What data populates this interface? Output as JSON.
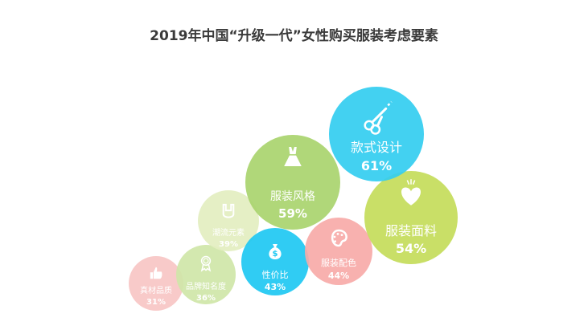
{
  "chart_data": {
    "type": "bubble",
    "title": "2019年中国“升级一代”女性购买服装考虑要素",
    "series": [
      {
        "label": "款式设计",
        "value": 61,
        "value_text": "61%",
        "color": "#33cdf0",
        "icon": "scissors-icon"
      },
      {
        "label": "服装风格",
        "value": 59,
        "value_text": "59%",
        "color": "#a9d46e",
        "icon": "dress-icon"
      },
      {
        "label": "服装面料",
        "value": 54,
        "value_text": "54%",
        "color": "#c4dc5a",
        "icon": "heart-fabric-icon"
      },
      {
        "label": "服装配色",
        "value": 44,
        "value_text": "44%",
        "color": "#f7aaa8",
        "icon": "palette-icon"
      },
      {
        "label": "性价比",
        "value": 43,
        "value_text": "43%",
        "color": "#1ec8f2",
        "icon": "money-bag-icon"
      },
      {
        "label": "潮流元素",
        "value": 39,
        "value_text": "39%",
        "color": "#e3eec0",
        "icon": "rock-hand-icon"
      },
      {
        "label": "品牌知名度",
        "value": 36,
        "value_text": "36%",
        "color": "#cfe6a8",
        "icon": "award-ribbon-icon"
      },
      {
        "label": "真材品质",
        "value": 31,
        "value_text": "31%",
        "color": "#f7c5c4",
        "icon": "thumbs-up-icon"
      }
    ]
  }
}
